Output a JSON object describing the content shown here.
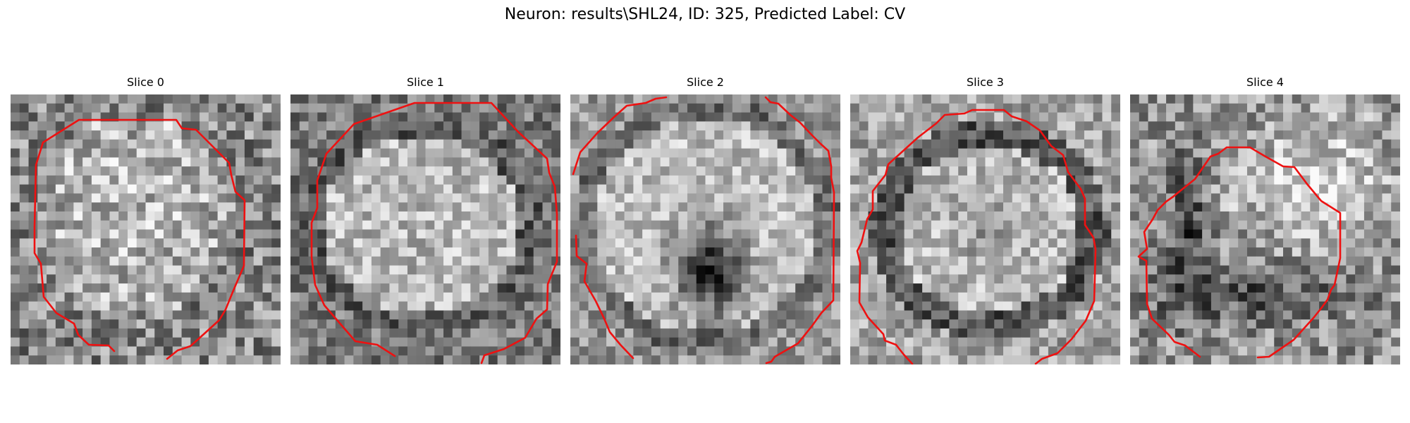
{
  "figure": {
    "title": "Neuron: results\\SHL24, ID: 325, Predicted Label: CV"
  },
  "panels": [
    {
      "label": "Slice 0"
    },
    {
      "label": "Slice 1"
    },
    {
      "label": "Slice 2"
    },
    {
      "label": "Slice 3"
    },
    {
      "label": "Slice 4"
    }
  ],
  "colors": {
    "contour": "#ee1111",
    "background": "#ffffff"
  }
}
